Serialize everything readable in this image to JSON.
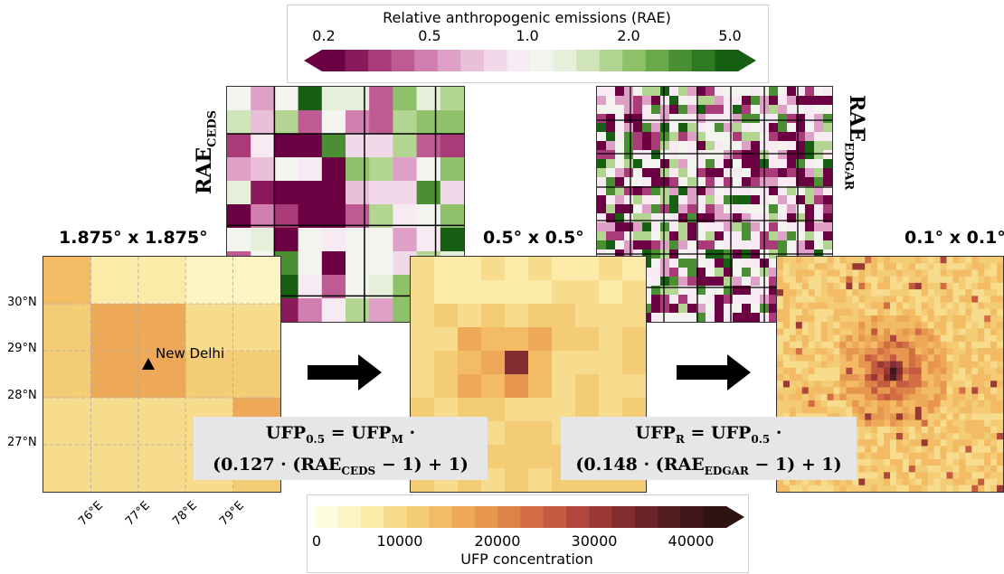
{
  "rae_colorbar": {
    "title": "Relative anthropogenic emissions (RAE)",
    "ticks": [
      "0.2",
      "0.5",
      "1.0",
      "2.0",
      "5.0"
    ],
    "colors": [
      "#6b0042",
      "#8a1a5b",
      "#a83b78",
      "#bf5b93",
      "#d07fb0",
      "#dea0c7",
      "#e9bfd9",
      "#f2d9ea",
      "#f7eaf2",
      "#f3f4ef",
      "#e6efd9",
      "#cfe4b9",
      "#b3d592",
      "#8fc06a",
      "#6aa84a",
      "#4a8f33",
      "#2e7a22",
      "#175f13"
    ]
  },
  "ufp_colorbar": {
    "title": "UFP concentration",
    "ticks": [
      "0",
      "10000",
      "20000",
      "30000",
      "40000"
    ],
    "colors": [
      "#fffde0",
      "#fdf4c4",
      "#fbeaa8",
      "#f8dc8d",
      "#f5cc76",
      "#f2bb64",
      "#eda958",
      "#e6964f",
      "#dd8248",
      "#d26d44",
      "#c45a40",
      "#b1473c",
      "#9a3836",
      "#822d30",
      "#6a2428",
      "#531d20",
      "#3f1718",
      "#2e1310"
    ]
  },
  "panels": {
    "coarse_title": "1.875° x 1.875°",
    "mid_title": "0.5° x 0.5°",
    "fine_title": "0.1° x 0.1°",
    "rae_ceds_main": "RAE",
    "rae_ceds_sub": "CEDS",
    "rae_edgar_main": "RAE",
    "rae_edgar_sub": "EDGAR"
  },
  "map": {
    "lat_labels": [
      "30°N",
      "29°N",
      "28°N",
      "27°N"
    ],
    "lon_labels": [
      "76°E",
      "77°E",
      "78°E",
      "79°E"
    ],
    "city": "New Delhi"
  },
  "formula1": {
    "line1_lhs": "UFP",
    "line1_lhs_sub": "0.5",
    "line1_rhs": "UFP",
    "line1_rhs_sub": "M",
    "line2_pre": "(0.127  ·  (RAE",
    "line2_sub": "CEDS",
    "line2_post": " − 1) + 1)"
  },
  "formula2": {
    "line1_lhs": "UFP",
    "line1_lhs_sub": "R",
    "line1_rhs": "UFP",
    "line1_rhs_sub": "0.5",
    "line2_pre": "(0.148 · (RAE",
    "line2_sub": "EDGAR",
    "line2_post": " − 1) + 1)"
  }
}
